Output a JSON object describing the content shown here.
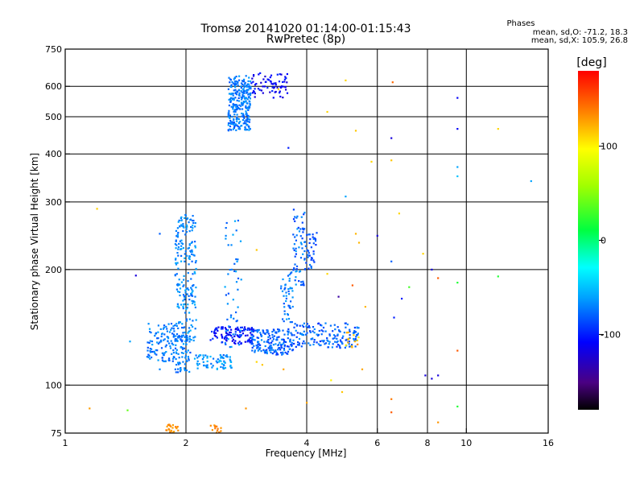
{
  "chart_data": {
    "type": "scatter",
    "title": "Tromsø 20141020 01:14:00-01:15:43",
    "subtitle": "RwPretec (8p)",
    "xlabel": "Frequency [MHz]",
    "ylabel": "Stationary phase Virtual Height [km]",
    "x_scale": "log",
    "y_scale": "log",
    "xlim": [
      1,
      16
    ],
    "ylim": [
      75,
      750
    ],
    "x_ticks": [
      {
        "v": 1,
        "label": "1"
      },
      {
        "v": 2,
        "label": "2"
      },
      {
        "v": 4,
        "label": "4"
      },
      {
        "v": 6,
        "label": "6"
      },
      {
        "v": 8,
        "label": "8"
      },
      {
        "v": 10,
        "label": "10"
      },
      {
        "v": 16,
        "label": "16"
      }
    ],
    "y_ticks": [
      {
        "v": 75,
        "label": "75"
      },
      {
        "v": 100,
        "label": "100"
      },
      {
        "v": 200,
        "label": "200"
      },
      {
        "v": 300,
        "label": "300"
      },
      {
        "v": 400,
        "label": "400"
      },
      {
        "v": 500,
        "label": "500"
      },
      {
        "v": 600,
        "label": "600"
      },
      {
        "v": 750,
        "label": "750"
      }
    ],
    "x_grid": [
      2,
      4,
      6,
      8,
      10
    ],
    "y_grid": [
      100,
      200,
      300,
      400,
      500,
      600
    ],
    "grid": true,
    "stats": {
      "heading": "Phases",
      "line_o": "mean, sd,O: -71.2, 18.3",
      "line_x": "mean, sd,X: 105.9, 26.8"
    },
    "colorbar": {
      "label": "[deg]",
      "range": [
        -180,
        180
      ],
      "ticks": [
        {
          "v": 100,
          "label": "100"
        },
        {
          "v": 0,
          "label": "0"
        },
        {
          "v": -100,
          "label": "-100"
        }
      ]
    },
    "clusters": [
      {
        "f": [
          2.55,
          2.9
        ],
        "h": [
          460,
          640
        ],
        "ph": [
          -85,
          -60
        ],
        "n": 280
      },
      {
        "f": [
          2.9,
          3.6
        ],
        "h": [
          560,
          650
        ],
        "ph": [
          -125,
          -95
        ],
        "n": 70
      },
      {
        "f": [
          1.88,
          2.12
        ],
        "h": [
          130,
          280
        ],
        "ph": [
          -80,
          -55
        ],
        "n": 220
      },
      {
        "f": [
          1.6,
          1.9
        ],
        "h": [
          115,
          145
        ],
        "ph": [
          -85,
          -60
        ],
        "n": 110
      },
      {
        "f": [
          1.88,
          2.05
        ],
        "h": [
          108,
          135
        ],
        "ph": [
          -85,
          -60
        ],
        "n": 70
      },
      {
        "f": [
          2.1,
          2.6
        ],
        "h": [
          110,
          120
        ],
        "ph": [
          -80,
          -50
        ],
        "n": 70
      },
      {
        "f": [
          2.3,
          2.95
        ],
        "h": [
          128,
          142
        ],
        "ph": [
          -120,
          -90
        ],
        "n": 110
      },
      {
        "f": [
          2.9,
          3.7
        ],
        "h": [
          120,
          140
        ],
        "ph": [
          -95,
          -65
        ],
        "n": 170
      },
      {
        "f": [
          3.6,
          5.4
        ],
        "h": [
          125,
          145
        ],
        "ph": [
          -95,
          -65
        ],
        "n": 160
      },
      {
        "f": [
          2.5,
          2.75
        ],
        "h": [
          125,
          270
        ],
        "ph": [
          -85,
          -55
        ],
        "n": 50
      },
      {
        "f": [
          3.45,
          3.7
        ],
        "h": [
          145,
          200
        ],
        "ph": [
          -85,
          -60
        ],
        "n": 45
      },
      {
        "f": [
          3.7,
          3.95
        ],
        "h": [
          180,
          290
        ],
        "ph": [
          -95,
          -60
        ],
        "n": 60
      },
      {
        "f": [
          3.95,
          4.25
        ],
        "h": [
          200,
          250
        ],
        "ph": [
          -95,
          -70
        ],
        "n": 40
      },
      {
        "f": [
          5.0,
          5.4
        ],
        "h": [
          125,
          140
        ],
        "ph": [
          100,
          140
        ],
        "n": 14
      },
      {
        "f": [
          1.78,
          1.92
        ],
        "h": [
          75,
          79
        ],
        "ph": [
          125,
          140
        ],
        "n": 22
      },
      {
        "f": [
          2.3,
          2.45
        ],
        "h": [
          75,
          79
        ],
        "ph": [
          125,
          140
        ],
        "n": 14
      }
    ],
    "points": [
      {
        "f": 1.2,
        "h": 288,
        "ph": 112
      },
      {
        "f": 1.15,
        "h": 87,
        "ph": 128
      },
      {
        "f": 1.43,
        "h": 86,
        "ph": 40
      },
      {
        "f": 2.82,
        "h": 87,
        "ph": 130
      },
      {
        "f": 4.0,
        "h": 90,
        "ph": 125
      },
      {
        "f": 4.9,
        "h": 96,
        "ph": 115
      },
      {
        "f": 5.0,
        "h": 622,
        "ph": 110
      },
      {
        "f": 3.4,
        "h": 590,
        "ph": 110
      },
      {
        "f": 4.5,
        "h": 515,
        "ph": 110
      },
      {
        "f": 5.3,
        "h": 460,
        "ph": 115
      },
      {
        "f": 6.5,
        "h": 440,
        "ph": -120
      },
      {
        "f": 6.55,
        "h": 615,
        "ph": 145
      },
      {
        "f": 9.5,
        "h": 560,
        "ph": -110
      },
      {
        "f": 9.5,
        "h": 465,
        "ph": -110
      },
      {
        "f": 12.0,
        "h": 465,
        "ph": 110
      },
      {
        "f": 9.5,
        "h": 370,
        "ph": -60
      },
      {
        "f": 9.5,
        "h": 350,
        "ph": -50
      },
      {
        "f": 14.5,
        "h": 340,
        "ph": -60
      },
      {
        "f": 3.6,
        "h": 415,
        "ph": -100
      },
      {
        "f": 5.8,
        "h": 382,
        "ph": 110
      },
      {
        "f": 6.5,
        "h": 385,
        "ph": 115
      },
      {
        "f": 5.0,
        "h": 310,
        "ph": -60
      },
      {
        "f": 6.8,
        "h": 280,
        "ph": 110
      },
      {
        "f": 7.8,
        "h": 220,
        "ph": 110
      },
      {
        "f": 8.2,
        "h": 200,
        "ph": -120
      },
      {
        "f": 8.5,
        "h": 190,
        "ph": 150
      },
      {
        "f": 9.5,
        "h": 185,
        "ph": 20
      },
      {
        "f": 12.0,
        "h": 192,
        "ph": 20
      },
      {
        "f": 7.9,
        "h": 106,
        "ph": -120
      },
      {
        "f": 8.5,
        "h": 106,
        "ph": -120
      },
      {
        "f": 8.2,
        "h": 104,
        "ph": -120
      },
      {
        "f": 9.5,
        "h": 123,
        "ph": 150
      },
      {
        "f": 9.5,
        "h": 88,
        "ph": 20
      },
      {
        "f": 8.5,
        "h": 80,
        "ph": 130
      },
      {
        "f": 6.5,
        "h": 92,
        "ph": 140
      },
      {
        "f": 6.5,
        "h": 85,
        "ph": 150
      },
      {
        "f": 6.6,
        "h": 150,
        "ph": -100
      },
      {
        "f": 6.9,
        "h": 168,
        "ph": -100
      },
      {
        "f": 7.2,
        "h": 180,
        "ph": 30
      },
      {
        "f": 5.6,
        "h": 160,
        "ph": 120
      },
      {
        "f": 5.2,
        "h": 182,
        "ph": 150
      },
      {
        "f": 4.8,
        "h": 170,
        "ph": -140
      },
      {
        "f": 4.5,
        "h": 195,
        "ph": 110
      },
      {
        "f": 3.0,
        "h": 115,
        "ph": 110
      },
      {
        "f": 3.1,
        "h": 113,
        "ph": 115
      },
      {
        "f": 3.5,
        "h": 110,
        "ph": 125
      },
      {
        "f": 5.5,
        "h": 110,
        "ph": 125
      },
      {
        "f": 4.6,
        "h": 103,
        "ph": 100
      },
      {
        "f": 6.0,
        "h": 245,
        "ph": -120
      },
      {
        "f": 5.3,
        "h": 248,
        "ph": 120
      },
      {
        "f": 5.4,
        "h": 235,
        "ph": 120
      },
      {
        "f": 3.0,
        "h": 225,
        "ph": 115
      },
      {
        "f": 1.5,
        "h": 193,
        "ph": -120
      },
      {
        "f": 1.72,
        "h": 248,
        "ph": -80
      },
      {
        "f": 2.6,
        "h": 200,
        "ph": -70
      },
      {
        "f": 6.5,
        "h": 210,
        "ph": -80
      },
      {
        "f": 1.72,
        "h": 110,
        "ph": -70
      },
      {
        "f": 1.45,
        "h": 130,
        "ph": -60
      }
    ]
  }
}
